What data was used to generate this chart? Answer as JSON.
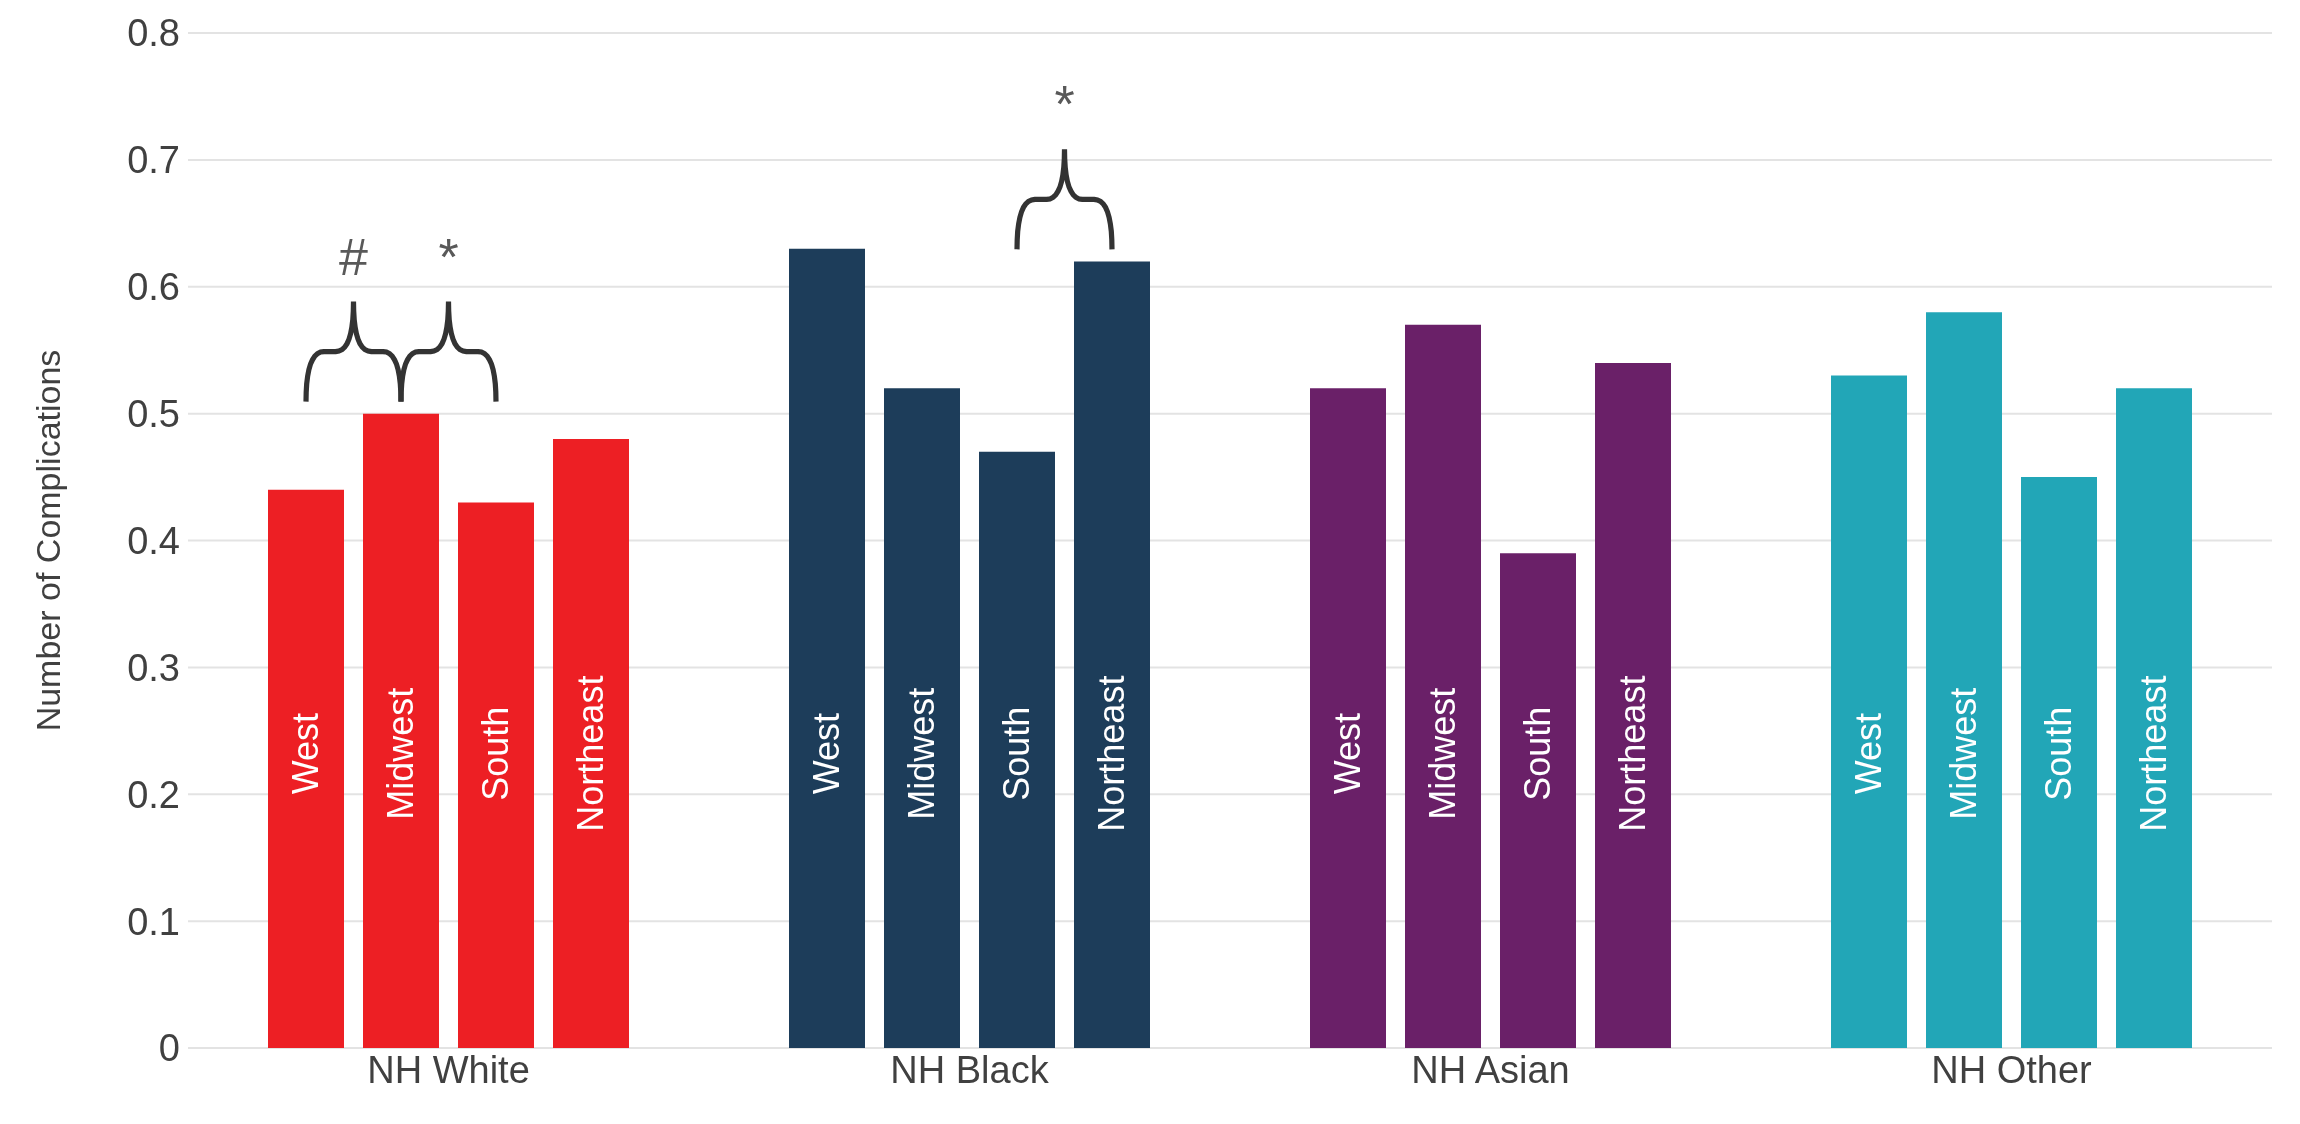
{
  "chart_data": {
    "type": "bar",
    "ylabel": "Number of Complications",
    "categories": [
      "NH White",
      "NH Black",
      "NH Asian",
      "NH Other"
    ],
    "series": [
      {
        "name": "West",
        "colors": [
          "#ed1f24",
          "#1d3d5a",
          "#6a2068",
          "#22a6b7"
        ],
        "values": [
          0.44,
          0.63,
          0.52,
          0.53
        ]
      },
      {
        "name": "Midwest",
        "colors": [
          "#ed1f24",
          "#1d3d5a",
          "#6a2068",
          "#22a6b7"
        ],
        "values": [
          0.5,
          0.52,
          0.57,
          0.58
        ]
      },
      {
        "name": "South",
        "colors": [
          "#ed1f24",
          "#1d3d5a",
          "#6a2068",
          "#22a6b7"
        ],
        "values": [
          0.43,
          0.47,
          0.39,
          0.45
        ]
      },
      {
        "name": "Northeast",
        "colors": [
          "#ed1f24",
          "#1d3d5a",
          "#6a2068",
          "#22a6b7"
        ],
        "values": [
          0.48,
          0.62,
          0.54,
          0.52
        ]
      }
    ],
    "ylim": [
      0,
      0.8
    ],
    "yticks": [
      0,
      0.1,
      0.2,
      0.3,
      0.4,
      0.5,
      0.6,
      0.7,
      0.8
    ],
    "grid": "y",
    "legend": false,
    "annotations": [
      "#",
      "*",
      "*"
    ]
  }
}
